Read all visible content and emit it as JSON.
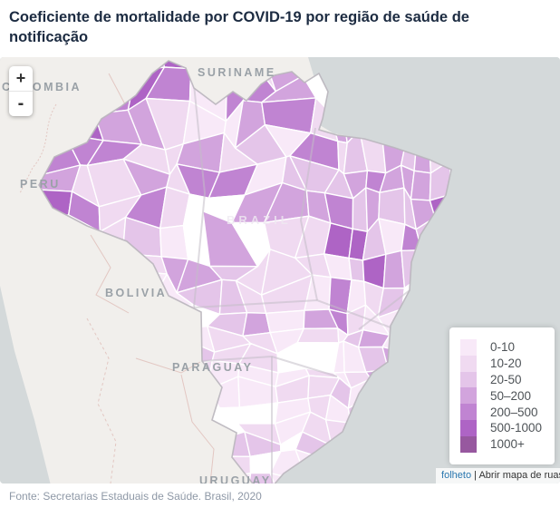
{
  "header": {
    "title": "Coeficiente de mortalidade por COVID-19 por região de saúde de notificação"
  },
  "map": {
    "zoom_in_label": "+",
    "zoom_out_label": "-",
    "country_labels": [
      "COLOMBIA",
      "SURINAME",
      "PERU",
      "BOLIVIA",
      "PARAGUAY",
      "URUGUAY"
    ],
    "brazil_label": "BRAZIL",
    "colors": {
      "ocean": "#d4d9da",
      "land": "#f1efec",
      "country_border_red": "#ddb9b4",
      "brazil_outline": "#b9b5bd",
      "region_border": "#ffffff",
      "state_border": "#c2bec6",
      "no_data": "#ffffff",
      "label_gray": "#9aa1a7"
    },
    "attribution": {
      "link_label": "folheto",
      "separator": "|",
      "text": "Abrir mapa de ruas",
      "link_color": "#2a77af"
    }
  },
  "legend": {
    "items": [
      {
        "label": "0-10",
        "color": "#f8e9f8"
      },
      {
        "label": "10-20",
        "color": "#f0daf1"
      },
      {
        "label": "20-50",
        "color": "#e4c5e9"
      },
      {
        "label": "50–200",
        "color": "#d2a4dd"
      },
      {
        "label": "200–500",
        "color": "#c084d2"
      },
      {
        "label": "500-1000",
        "color": "#ae64c5"
      },
      {
        "label": "1000+",
        "color": "#97589f"
      }
    ]
  },
  "footer": {
    "source": "Fonte: Secretarias Estaduais de Saúde. Brasil, 2020"
  }
}
